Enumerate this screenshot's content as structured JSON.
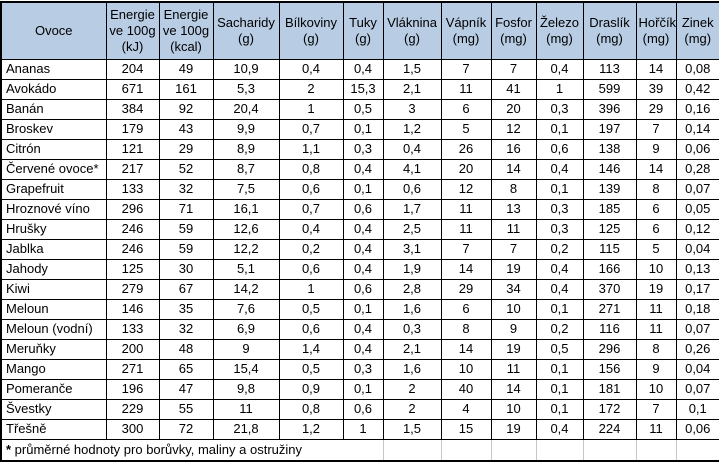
{
  "table": {
    "columns": [
      "Ovoce",
      "Energie ve 100g (kJ)",
      "Energie ve 100g (kcal)",
      "Sacharidy (g)",
      "Bílkoviny (g)",
      "Tuky (g)",
      "Vláknina (g)",
      "Vápník (mg)",
      "Fosfor (mg)",
      "Železo (mg)",
      "Draslík (mg)",
      "Hořčík (mg)",
      "Zinek (mg)"
    ],
    "rows": [
      [
        "Ananas",
        "204",
        "49",
        "10,9",
        "0,4",
        "0,4",
        "1,5",
        "7",
        "7",
        "0,4",
        "113",
        "14",
        "0,08"
      ],
      [
        "Avokádo",
        "671",
        "161",
        "5,3",
        "2",
        "15,3",
        "2,1",
        "11",
        "41",
        "1",
        "599",
        "39",
        "0,42"
      ],
      [
        "Banán",
        "384",
        "92",
        "20,4",
        "1",
        "0,5",
        "3",
        "6",
        "20",
        "0,3",
        "396",
        "29",
        "0,16"
      ],
      [
        "Broskev",
        "179",
        "43",
        "9,9",
        "0,7",
        "0,1",
        "1,2",
        "5",
        "12",
        "0,1",
        "197",
        "7",
        "0,14"
      ],
      [
        "Citrón",
        "121",
        "29",
        "8,9",
        "1,1",
        "0,3",
        "0,4",
        "26",
        "16",
        "0,6",
        "138",
        "9",
        "0,06"
      ],
      [
        "Červené ovoce*",
        "217",
        "52",
        "8,7",
        "0,8",
        "0,4",
        "4,1",
        "20",
        "14",
        "0,4",
        "146",
        "14",
        "0,28"
      ],
      [
        "Grapefruit",
        "133",
        "32",
        "7,5",
        "0,6",
        "0,1",
        "0,6",
        "12",
        "8",
        "0,1",
        "139",
        "8",
        "0,07"
      ],
      [
        "Hroznové víno",
        "296",
        "71",
        "16,1",
        "0,7",
        "0,6",
        "1,7",
        "11",
        "13",
        "0,3",
        "185",
        "6",
        "0,05"
      ],
      [
        "Hrušky",
        "246",
        "59",
        "12,6",
        "0,4",
        "0,4",
        "2,5",
        "11",
        "11",
        "0,3",
        "125",
        "6",
        "0,12"
      ],
      [
        "Jablka",
        "246",
        "59",
        "12,2",
        "0,2",
        "0,4",
        "3,1",
        "7",
        "7",
        "0,2",
        "115",
        "5",
        "0,04"
      ],
      [
        "Jahody",
        "125",
        "30",
        "5,1",
        "0,6",
        "0,4",
        "1,9",
        "14",
        "19",
        "0,4",
        "166",
        "10",
        "0,13"
      ],
      [
        "Kiwi",
        "279",
        "67",
        "14,2",
        "1",
        "0,6",
        "2,8",
        "29",
        "34",
        "0,4",
        "370",
        "19",
        "0,17"
      ],
      [
        "Meloun",
        "146",
        "35",
        "7,6",
        "0,5",
        "0,1",
        "1,6",
        "6",
        "10",
        "0,1",
        "271",
        "11",
        "0,18"
      ],
      [
        "Meloun (vodní)",
        "133",
        "32",
        "6,9",
        "0,6",
        "0,4",
        "0,3",
        "8",
        "9",
        "0,2",
        "116",
        "11",
        "0,07"
      ],
      [
        "Meruňky",
        "200",
        "48",
        "9",
        "1,4",
        "0,4",
        "2,1",
        "14",
        "19",
        "0,5",
        "296",
        "8",
        "0,26"
      ],
      [
        "Mango",
        "271",
        "65",
        "15,4",
        "0,5",
        "0,3",
        "1,6",
        "10",
        "11",
        "0,1",
        "156",
        "9",
        "0,04"
      ],
      [
        "Pomeranče",
        "196",
        "47",
        "9,8",
        "0,9",
        "0,1",
        "2",
        "40",
        "14",
        "0,1",
        "181",
        "10",
        "0,07"
      ],
      [
        "Švestky",
        "229",
        "55",
        "11",
        "0,8",
        "0,6",
        "2",
        "4",
        "10",
        "0,1",
        "172",
        "7",
        "0,1"
      ],
      [
        "Třešně",
        "300",
        "72",
        "21,8",
        "1,2",
        "1",
        "1,5",
        "15",
        "19",
        "0,4",
        "224",
        "11",
        "0,06"
      ]
    ],
    "footnote_marker": "*",
    "footnote_text": " průměrné hodnoty pro borůvky, maliny a ostružiny",
    "header_fill_color": "#b8cce4",
    "border_color": "#000000",
    "footer_gridline_color": "#c6c6c6"
  }
}
